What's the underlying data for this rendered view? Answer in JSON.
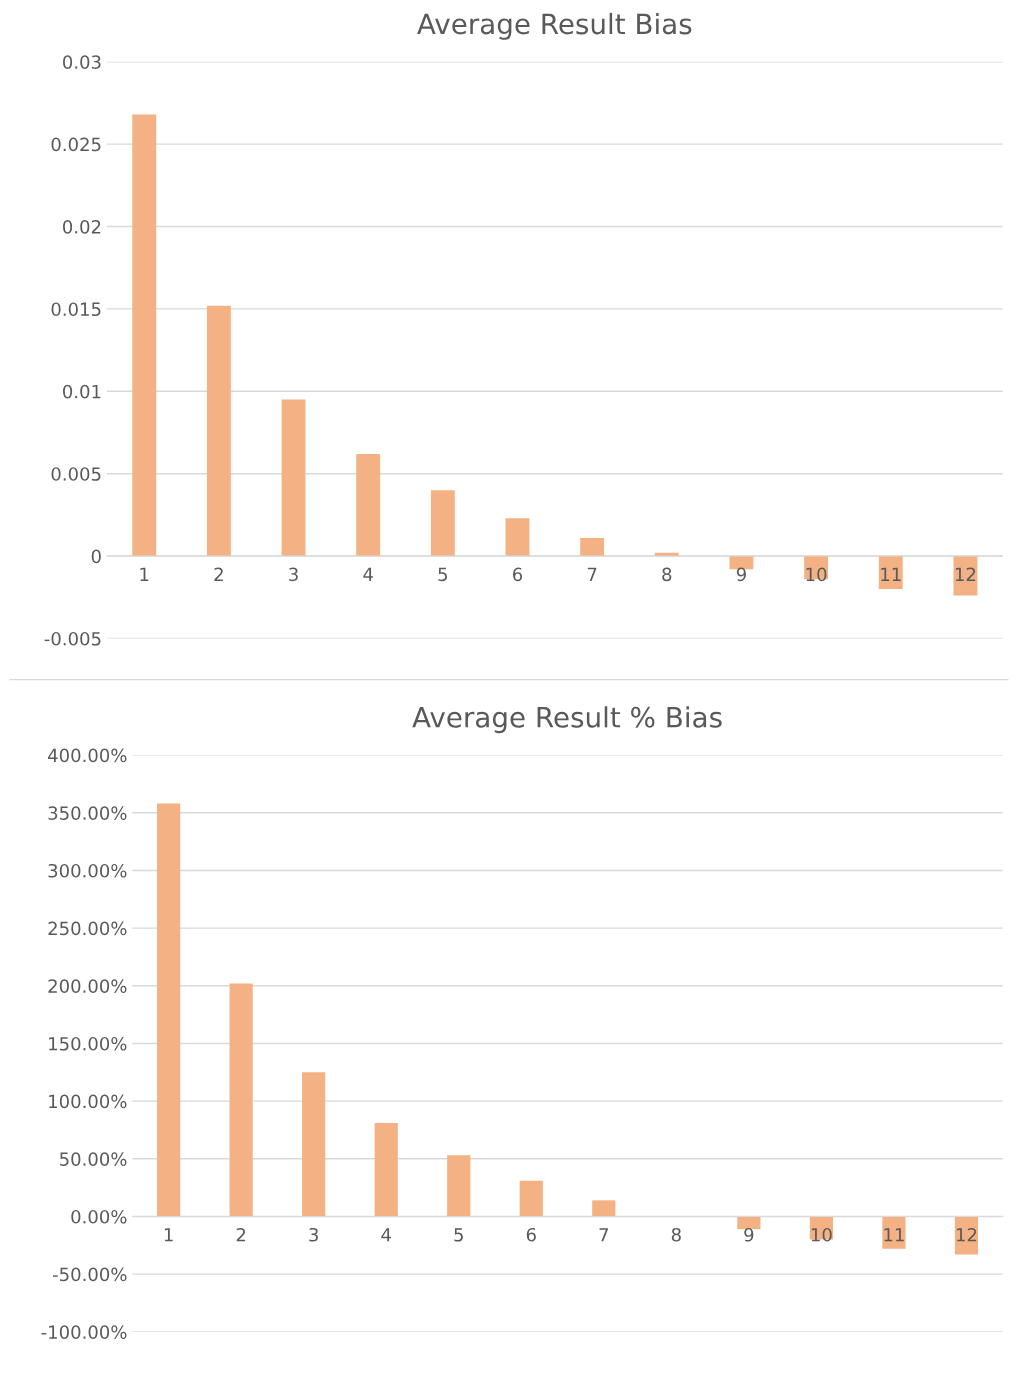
{
  "chart_data": [
    {
      "type": "bar",
      "title": "Average Result Bias",
      "categories": [
        "1",
        "2",
        "3",
        "4",
        "5",
        "6",
        "7",
        "8",
        "9",
        "10",
        "11",
        "12"
      ],
      "values": [
        0.0268,
        0.0152,
        0.0095,
        0.0062,
        0.004,
        0.0023,
        0.0011,
        0.0002,
        -0.0008,
        -0.0014,
        -0.002,
        -0.0024
      ],
      "color": "#f4b183",
      "ylim": [
        -0.005,
        0.03
      ],
      "yticks": [
        -0.005,
        0,
        0.005,
        0.01,
        0.015,
        0.02,
        0.025,
        0.03
      ],
      "grid": "y"
    },
    {
      "type": "bar",
      "title": "Average Result % Bias",
      "categories": [
        "1",
        "2",
        "3",
        "4",
        "5",
        "6",
        "7",
        "8",
        "9",
        "10",
        "11",
        "12"
      ],
      "values": [
        358,
        202,
        125,
        81,
        53,
        31,
        14,
        0,
        -11,
        -20,
        -28,
        -33
      ],
      "color": "#f4b183",
      "ylim": [
        -100,
        400
      ],
      "yticks": [
        {
          "value": -100,
          "label": "-100.00%"
        },
        {
          "value": -50,
          "label": "-50.00%"
        },
        {
          "value": 0,
          "label": "0.00%"
        },
        {
          "value": 50,
          "label": "50.00%"
        },
        {
          "value": 100,
          "label": "100.00%"
        },
        {
          "value": 150,
          "label": "150.00%"
        },
        {
          "value": 200,
          "label": "200.00%"
        },
        {
          "value": 250,
          "label": "250.00%"
        },
        {
          "value": 300,
          "label": "300.00%"
        },
        {
          "value": 350,
          "label": "350.00%"
        },
        {
          "value": 400,
          "label": "400.00%"
        }
      ],
      "grid": "y"
    }
  ]
}
